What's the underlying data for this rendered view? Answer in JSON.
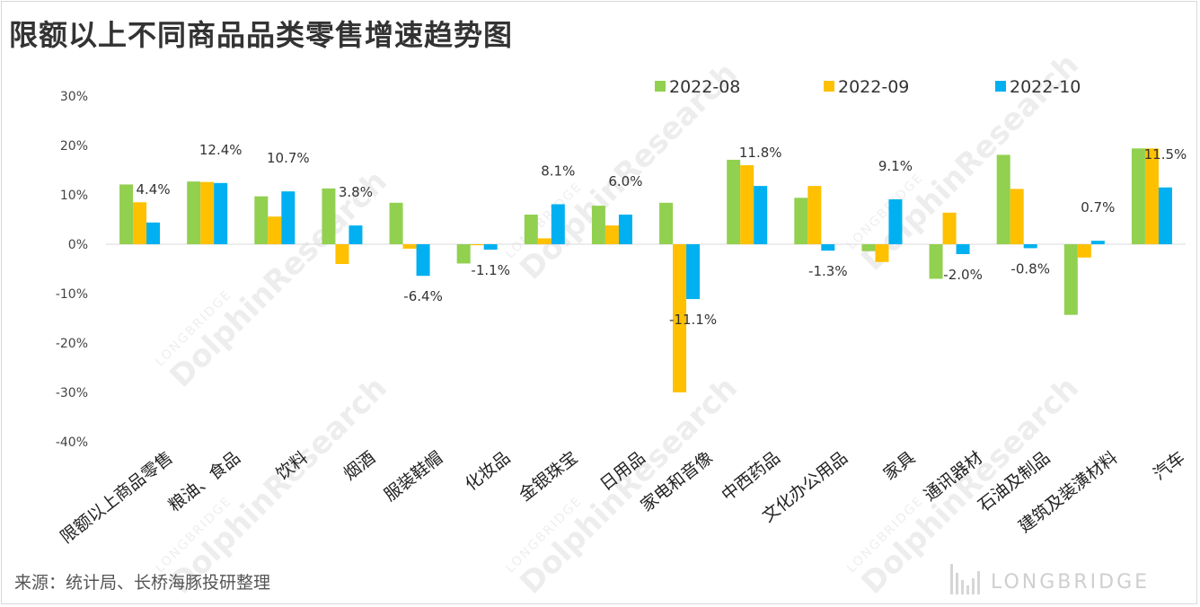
{
  "title": "限额以上不同商品品类零售增速趋势图",
  "source": "来源：统计局、长桥海豚投研整理",
  "brand": "LONGBRIDGE",
  "watermark": {
    "small": "LONGBRIDGE",
    "big": "DolphinResearch"
  },
  "chart_data": {
    "type": "bar",
    "categories": [
      "限额以上商品零售",
      "粮油、食品",
      "饮料",
      "烟酒",
      "服装鞋帽",
      "化妆品",
      "金银珠宝",
      "日用品",
      "家电和音像",
      "中西药品",
      "文化办公用品",
      "家具",
      "通讯器材",
      "石油及制品",
      "建筑及装潢材料",
      "汽车"
    ],
    "series": [
      {
        "name": "2022-08",
        "color": "#92d050",
        "values": [
          12.1,
          12.7,
          9.7,
          11.3,
          8.4,
          -3.9,
          6.0,
          7.8,
          8.4,
          17.1,
          9.4,
          -1.4,
          -7.0,
          18.1,
          -14.3,
          19.4
        ]
      },
      {
        "name": "2022-09",
        "color": "#ffc000",
        "values": [
          8.5,
          12.6,
          5.6,
          -4.0,
          -0.9,
          -0.2,
          1.2,
          3.8,
          -30.0,
          16.0,
          11.8,
          -3.6,
          6.4,
          11.2,
          -2.7,
          19.4
        ]
      },
      {
        "name": "2022-10",
        "color": "#00b0f0",
        "values": [
          4.4,
          12.4,
          10.7,
          3.8,
          -6.4,
          -1.1,
          8.1,
          6.0,
          -11.1,
          11.8,
          -1.3,
          9.1,
          -2.0,
          -0.8,
          0.7,
          11.5
        ]
      }
    ],
    "data_labels": [
      "4.4%",
      "12.4%",
      "10.7%",
      "3.8%",
      "-6.4%",
      "-1.1%",
      "8.1%",
      "6.0%",
      "-11.1%",
      "11.8%",
      "-1.3%",
      "9.1%",
      "-2.0%",
      "-0.8%",
      "0.7%",
      "11.5%"
    ],
    "y_ticks": [
      "30%",
      "20%",
      "10%",
      "0%",
      "-10%",
      "-20%",
      "-30%",
      "-40%"
    ],
    "ylim": [
      -40,
      30
    ],
    "grid": false,
    "legend": "top-right",
    "xlabel": "",
    "ylabel": ""
  }
}
